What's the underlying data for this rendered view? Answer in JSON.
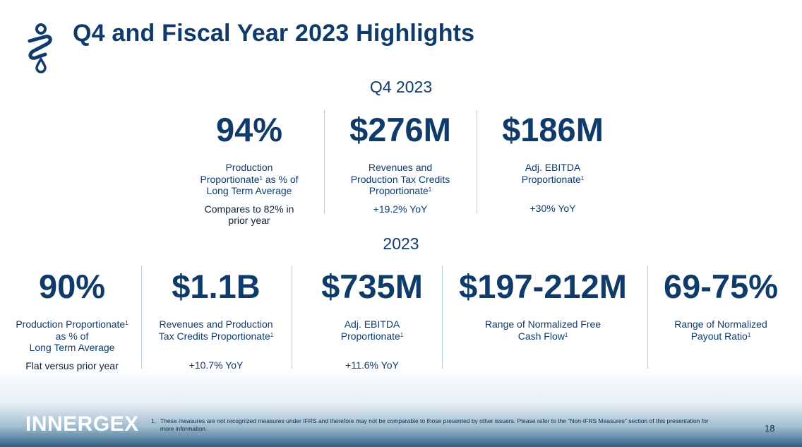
{
  "header": {
    "title": "Q4 and Fiscal Year 2023 Highlights"
  },
  "q4": {
    "label": "Q4 2023",
    "metrics": [
      {
        "value": "94%",
        "desc_lines": [
          "Production",
          "Proportionate¹ as % of",
          "Long Term Average"
        ],
        "sub": "Compares to 82% in prior year"
      },
      {
        "value": "$276M",
        "desc_lines": [
          "Revenues and",
          "Production Tax Credits",
          "Proportionate¹"
        ],
        "sub": "+19.2% YoY"
      },
      {
        "value": "$186M",
        "desc_lines": [
          "Adj. EBITDA",
          "Proportionate¹"
        ],
        "sub": "+30% YoY"
      }
    ]
  },
  "fy": {
    "label": "2023",
    "metrics": [
      {
        "value": "90%",
        "desc_lines": [
          "Production Proportionate¹",
          "as % of",
          "Long Term Average"
        ],
        "sub": "Flat versus prior year"
      },
      {
        "value": "$1.1B",
        "desc_lines": [
          "Revenues and Production",
          "Tax Credits Proportionate¹"
        ],
        "sub": "+10.7% YoY"
      },
      {
        "value": "$735M",
        "desc_lines": [
          "Adj. EBITDA",
          "Proportionate¹"
        ],
        "sub": "+11.6% YoY"
      },
      {
        "value": "$197-212M",
        "desc_lines": [
          "Range of Normalized Free",
          "Cash Flow¹"
        ],
        "sub": ""
      },
      {
        "value": "69-75%",
        "desc_lines": [
          "Range of Normalized",
          "Payout Ratio¹"
        ],
        "sub": ""
      }
    ]
  },
  "footer": {
    "brand": "INNERGEX",
    "footnote_number": "1.",
    "footnote_text": "These measures are not recognized measures under IFRS and therefore may not be comparable to those presented by other issuers. Please refer to the \"Non-IFRS Measures\" section of this presentation for more information.",
    "page_number": "18"
  },
  "colors": {
    "primary": "#0f3b6b",
    "divider": "#b7cbdd",
    "footer_band": "#2f5f84"
  }
}
